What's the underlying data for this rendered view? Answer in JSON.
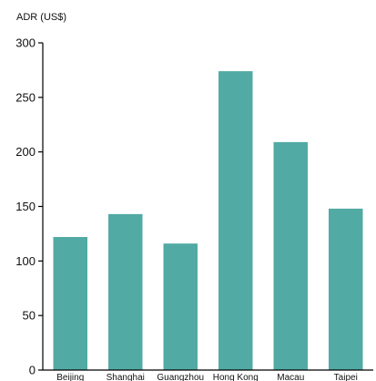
{
  "chart_data": {
    "type": "bar",
    "ylabel": "ADR (US$)",
    "ylim": [
      0,
      300
    ],
    "yticks": [
      0,
      50,
      100,
      150,
      200,
      250,
      300
    ],
    "categories": [
      "Beijing",
      "Shanghai",
      "Guangzhou",
      "Hong Kong",
      "Macau",
      "Taipei"
    ],
    "values": [
      122,
      143,
      116,
      274,
      209,
      148
    ],
    "bar_color": "#52aaa4",
    "axis_color": "#000000",
    "grid": false
  }
}
